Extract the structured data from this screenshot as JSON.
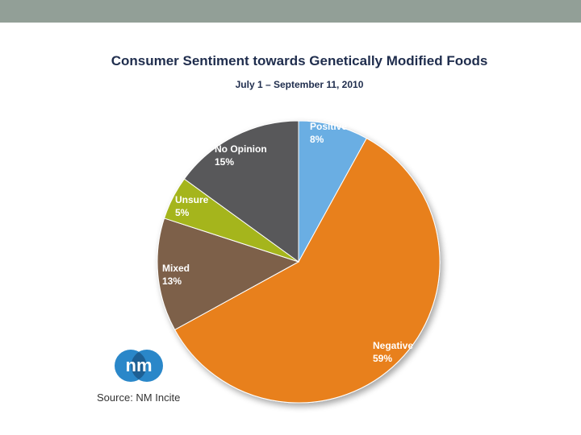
{
  "slide": {
    "source_text": "Source: NM Incite",
    "logo_icon": "nm-incite-logo-icon"
  },
  "colors": {
    "top_bar": "#929f97",
    "title": "#1f2d4d"
  },
  "chart_data": {
    "type": "pie",
    "title": "Consumer Sentiment towards Genetically Modified Foods",
    "subtitle": "July 1 – September 11, 2010",
    "start_angle_deg": 0,
    "direction": "clockwise",
    "slices": [
      {
        "label": "Positive",
        "value": 8,
        "display": "8%",
        "color": "#6aaee3"
      },
      {
        "label": "Negative",
        "value": 59,
        "display": "59%",
        "color": "#e8801a"
      },
      {
        "label": "Mixed",
        "value": 13,
        "display": "13%",
        "color": "#7d6148"
      },
      {
        "label": "Unsure",
        "value": 5,
        "display": "5%",
        "color": "#a5b51f"
      },
      {
        "label": "No Opinion",
        "value": 15,
        "display": "15%",
        "color": "#58585a"
      }
    ]
  }
}
